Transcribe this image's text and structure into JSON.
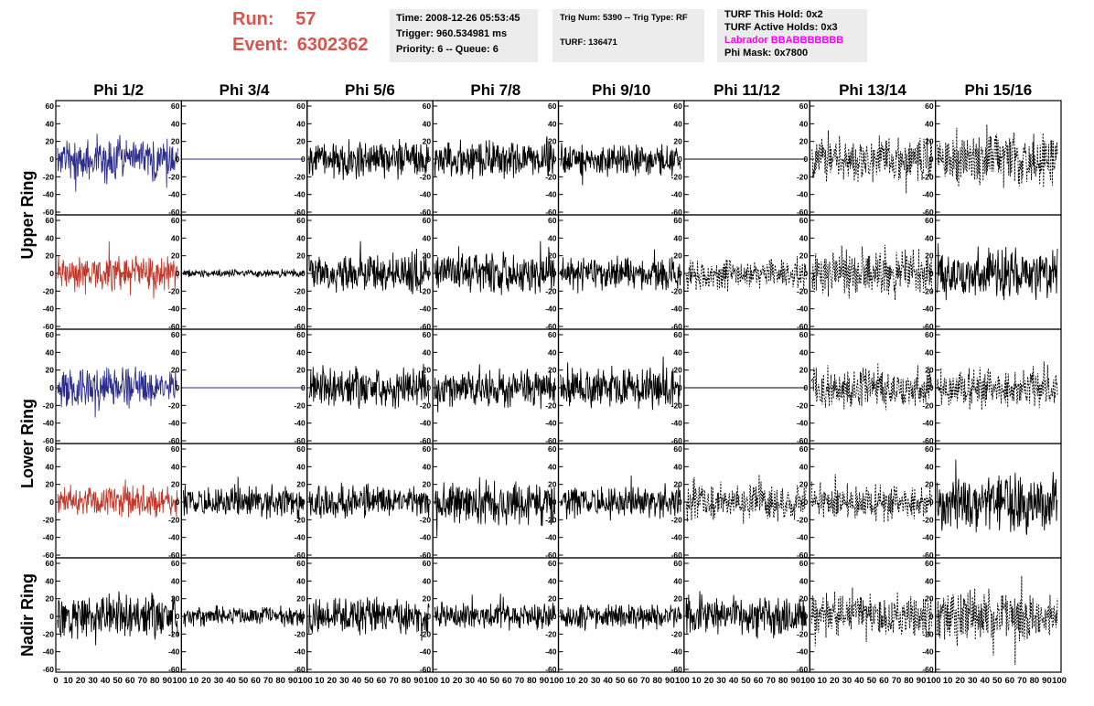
{
  "header": {
    "run_label": "Run:",
    "run_value": "57",
    "event_label": "Event:",
    "event_value": "6302362",
    "time": "Time: 2008-12-26 05:53:45",
    "trigger": "Trigger: 960.534981 ms",
    "priority": "Priority: 6 -- Queue: 6",
    "trig_num": "Trig Num: 5390 -- Trig Type: RF",
    "turf": "TURF: 136471",
    "turf_hold": "TURF This Hold: 0x2",
    "turf_active": "TURF Active Holds: 0x3",
    "labrador": "Labrador BBABBBBBBB",
    "phi_mask": "Phi Mask: 0x7800"
  },
  "colors": {
    "header_red": "#d9534f",
    "labrador": "#ff00ff",
    "blue": "#2c2c8c",
    "red": "#c0392b",
    "black": "#000000"
  },
  "chart_data": {
    "type": "line",
    "columns": [
      "Phi 1/2",
      "Phi 3/4",
      "Phi 5/6",
      "Phi 7/8",
      "Phi 9/10",
      "Phi 11/12",
      "Phi 13/14",
      "Phi 15/16"
    ],
    "ring_labels": [
      "Upper Ring",
      "Lower Ring",
      "Nadir Ring"
    ],
    "ylim": [
      -60,
      60
    ],
    "yticks": [
      60,
      40,
      20,
      0,
      -20,
      -40,
      -60
    ],
    "xlim": [
      0,
      100
    ],
    "xticks": [
      "0",
      "10",
      "20",
      "30",
      "40",
      "50",
      "60",
      "70",
      "80",
      "90",
      "100"
    ],
    "rows": [
      {
        "ring": "Upper Ring",
        "panels": [
          {
            "style": "blue",
            "amp": 22,
            "seed": 11
          },
          {
            "style": "flat",
            "amp": 0,
            "seed": 12
          },
          {
            "style": "black",
            "amp": 18,
            "seed": 13
          },
          {
            "style": "black",
            "amp": 18,
            "seed": 14
          },
          {
            "style": "black",
            "amp": 16,
            "seed": 15
          },
          {
            "style": "flat-black",
            "amp": 0,
            "seed": 16
          },
          {
            "style": "dashed",
            "amp": 22,
            "seed": 17
          },
          {
            "style": "dashed",
            "amp": 26,
            "seed": 18
          }
        ]
      },
      {
        "ring": "Upper Ring",
        "panels": [
          {
            "style": "red",
            "amp": 18,
            "seed": 21
          },
          {
            "style": "black",
            "amp": 4,
            "seed": 22
          },
          {
            "style": "black",
            "amp": 20,
            "seed": 23
          },
          {
            "style": "black",
            "amp": 20,
            "seed": 24
          },
          {
            "style": "black",
            "amp": 16,
            "seed": 25
          },
          {
            "style": "dashed",
            "amp": 16,
            "seed": 26
          },
          {
            "style": "dashed",
            "amp": 22,
            "seed": 27
          },
          {
            "style": "black",
            "amp": 24,
            "seed": 28
          }
        ]
      },
      {
        "ring": "Lower Ring",
        "panels": [
          {
            "style": "blue",
            "amp": 20,
            "seed": 31
          },
          {
            "style": "flat",
            "amp": 0,
            "seed": 32
          },
          {
            "style": "black",
            "amp": 20,
            "seed": 33
          },
          {
            "style": "black",
            "amp": 18,
            "seed": 34
          },
          {
            "style": "black",
            "amp": 20,
            "seed": 35
          },
          {
            "style": "flat-black",
            "amp": 0,
            "seed": 36
          },
          {
            "style": "dashed",
            "amp": 20,
            "seed": 37
          },
          {
            "style": "dashed",
            "amp": 20,
            "seed": 38
          }
        ]
      },
      {
        "ring": "Lower Ring",
        "panels": [
          {
            "style": "red",
            "amp": 16,
            "seed": 41
          },
          {
            "style": "black",
            "amp": 16,
            "seed": 42
          },
          {
            "style": "black",
            "amp": 16,
            "seed": 43
          },
          {
            "style": "black",
            "amp": 22,
            "seed": 44
          },
          {
            "style": "black",
            "amp": 16,
            "seed": 45
          },
          {
            "style": "dashed",
            "amp": 18,
            "seed": 46
          },
          {
            "style": "dashed",
            "amp": 18,
            "seed": 47
          },
          {
            "style": "black",
            "amp": 30,
            "seed": 48
          }
        ]
      },
      {
        "ring": "Nadir Ring",
        "panels": [
          {
            "style": "black",
            "amp": 22,
            "seed": 51
          },
          {
            "style": "black",
            "amp": 10,
            "seed": 52
          },
          {
            "style": "black",
            "amp": 18,
            "seed": 53
          },
          {
            "style": "black",
            "amp": 14,
            "seed": 54
          },
          {
            "style": "black",
            "amp": 12,
            "seed": 55
          },
          {
            "style": "black",
            "amp": 20,
            "seed": 56
          },
          {
            "style": "dashed",
            "amp": 22,
            "seed": 57
          },
          {
            "style": "dashed",
            "amp": 26,
            "seed": 58
          }
        ]
      }
    ]
  }
}
